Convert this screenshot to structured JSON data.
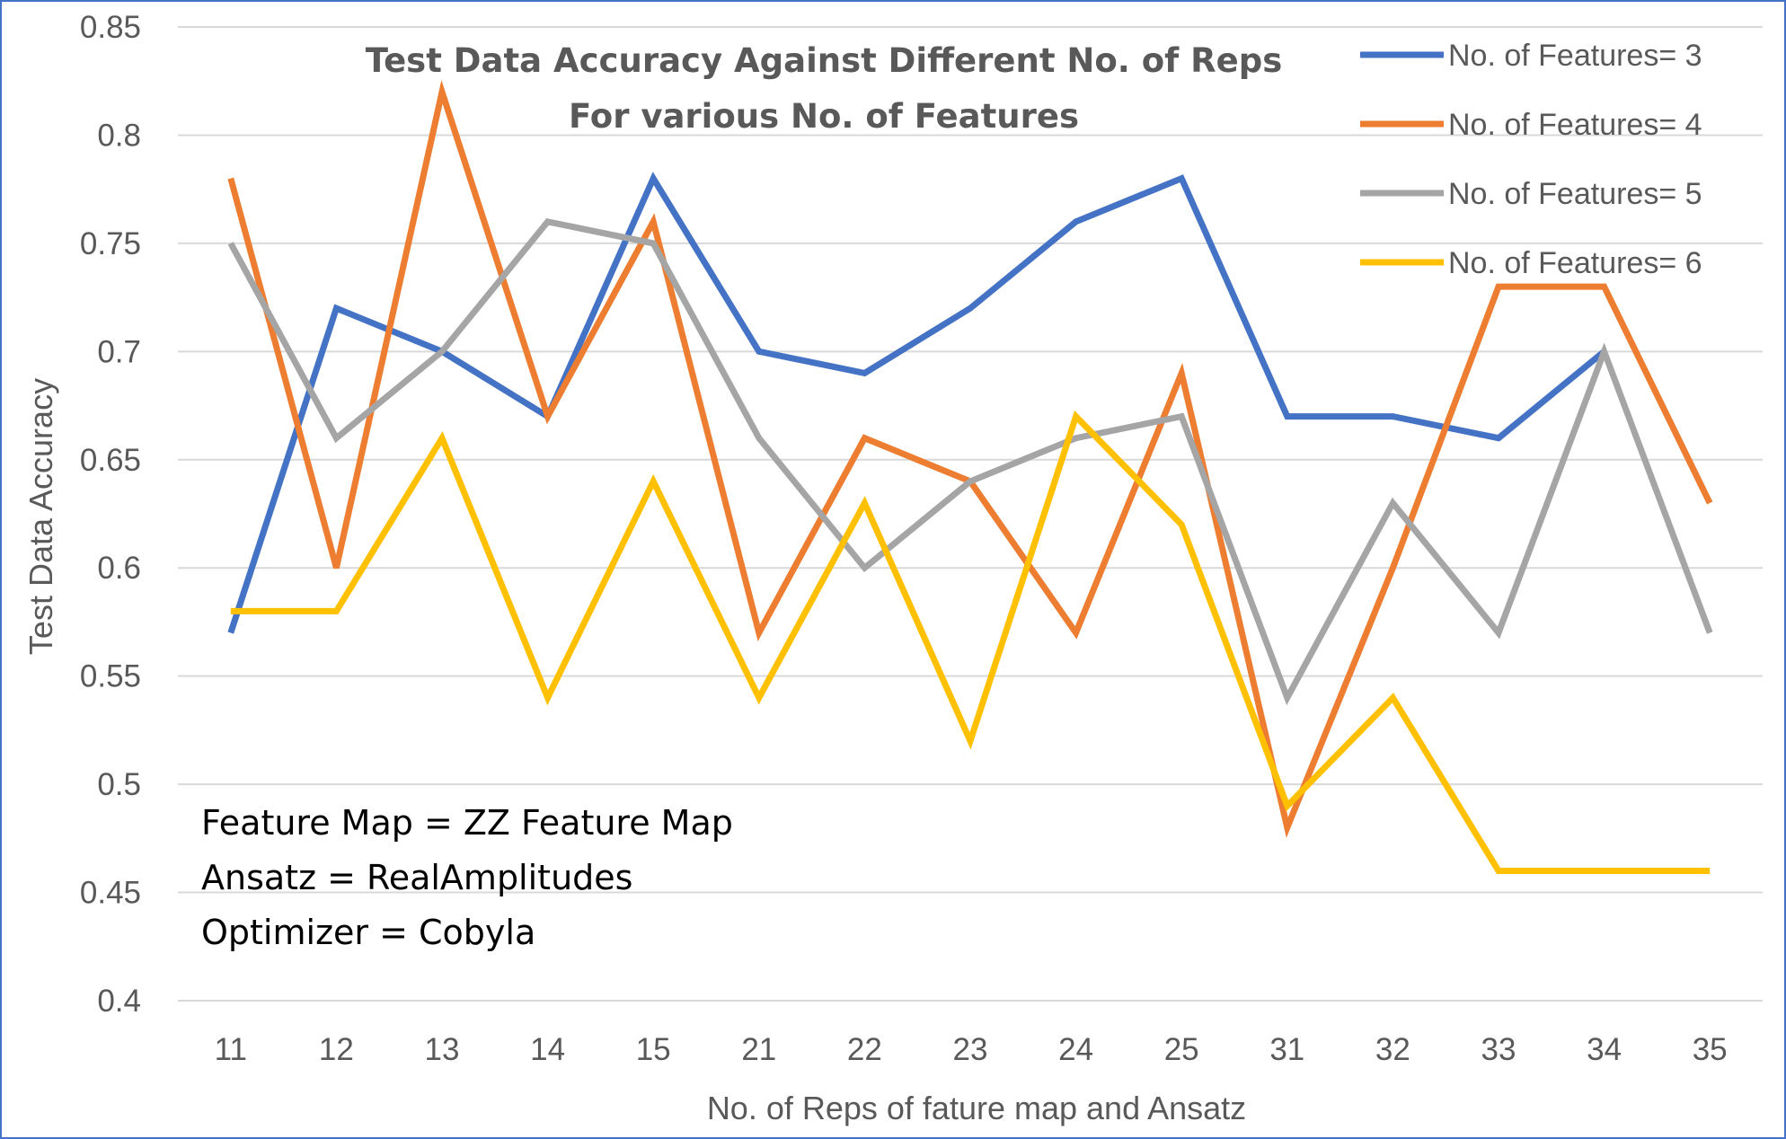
{
  "chart_data": {
    "type": "line",
    "title": "Test Data Accuracy Against Different No. of Reps",
    "subtitle": "For various No. of Features",
    "xlabel": "No. of Reps of fature map and Ansatz",
    "ylabel": "Test Data Accuracy",
    "categories": [
      "11",
      "12",
      "13",
      "14",
      "15",
      "21",
      "22",
      "23",
      "24",
      "25",
      "31",
      "32",
      "33",
      "34",
      "35"
    ],
    "ylim": [
      0.4,
      0.85
    ],
    "yticks": [
      "0.85",
      "0.8",
      "0.75",
      "0.7",
      "0.65",
      "0.6",
      "0.55",
      "0.5",
      "0.45",
      "0.4"
    ],
    "grid": true,
    "legend_position": "top-right",
    "series": [
      {
        "name": "No. of Features= 3",
        "color": "#4472c4",
        "values": [
          0.57,
          0.72,
          0.7,
          0.67,
          0.78,
          0.7,
          0.69,
          0.72,
          0.76,
          0.78,
          0.67,
          0.67,
          0.66,
          0.7,
          null
        ]
      },
      {
        "name": "No. of Features= 4",
        "color": "#ed7d31",
        "values": [
          0.78,
          0.6,
          0.82,
          0.67,
          0.76,
          0.57,
          0.66,
          0.64,
          0.57,
          0.69,
          0.48,
          0.6,
          0.73,
          0.73,
          0.63
        ]
      },
      {
        "name": "No. of Features= 5",
        "color": "#a5a5a5",
        "values": [
          0.75,
          0.66,
          0.7,
          0.76,
          0.75,
          0.66,
          0.6,
          0.64,
          0.66,
          0.67,
          0.54,
          0.63,
          0.57,
          0.7,
          0.57
        ]
      },
      {
        "name": "No. of Features= 6",
        "color": "#ffc000",
        "values": [
          0.58,
          0.58,
          0.66,
          0.54,
          0.64,
          0.54,
          0.63,
          0.52,
          0.67,
          0.62,
          0.49,
          0.54,
          0.46,
          0.46,
          0.46
        ]
      }
    ],
    "annotations": [
      "Feature Map = ZZ Feature Map",
      "Ansatz = RealAmplitudes",
      "Optimizer = Cobyla"
    ]
  }
}
